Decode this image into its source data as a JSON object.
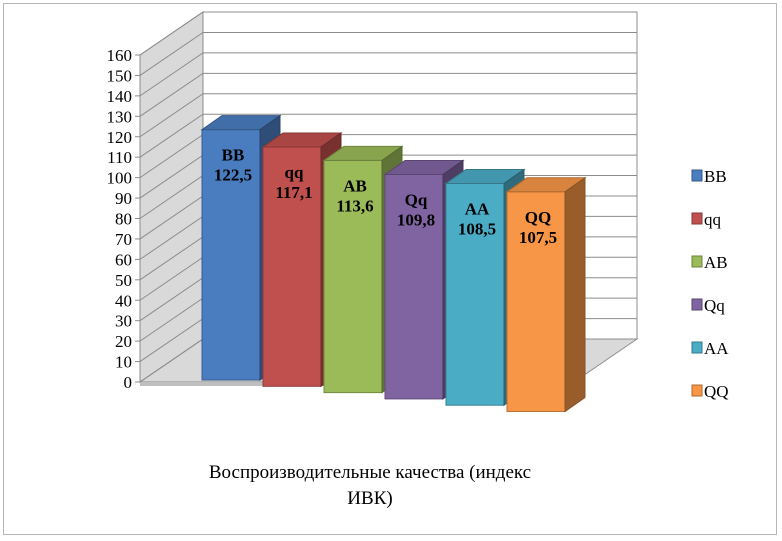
{
  "chart_data": {
    "type": "bar",
    "categories": [
      "BB",
      "qq",
      "AB",
      "Qq",
      "AA",
      "QQ"
    ],
    "values": [
      122.5,
      117.1,
      113.6,
      109.8,
      108.5,
      107.5
    ],
    "value_labels": [
      "122,5",
      "117,1",
      "113,6",
      "109,8",
      "108,5",
      "107,5"
    ],
    "colors": [
      "#4a7cc0",
      "#c0504d",
      "#9bbb59",
      "#8064a2",
      "#4bacc6",
      "#f79646"
    ],
    "legend": [
      "BB",
      "qq",
      "AB",
      "Qq",
      "AA",
      "QQ"
    ],
    "legend_position": "right",
    "xlabel_lines": [
      "Воспроизводительные качества (индекс",
      "ИВК)"
    ],
    "ylabel": "",
    "title": "",
    "ylim": [
      0,
      160
    ],
    "yticks": [
      0,
      10,
      20,
      30,
      40,
      50,
      60,
      70,
      80,
      90,
      100,
      110,
      120,
      130,
      140,
      150,
      160
    ],
    "grid": true,
    "style": "3d-column"
  }
}
